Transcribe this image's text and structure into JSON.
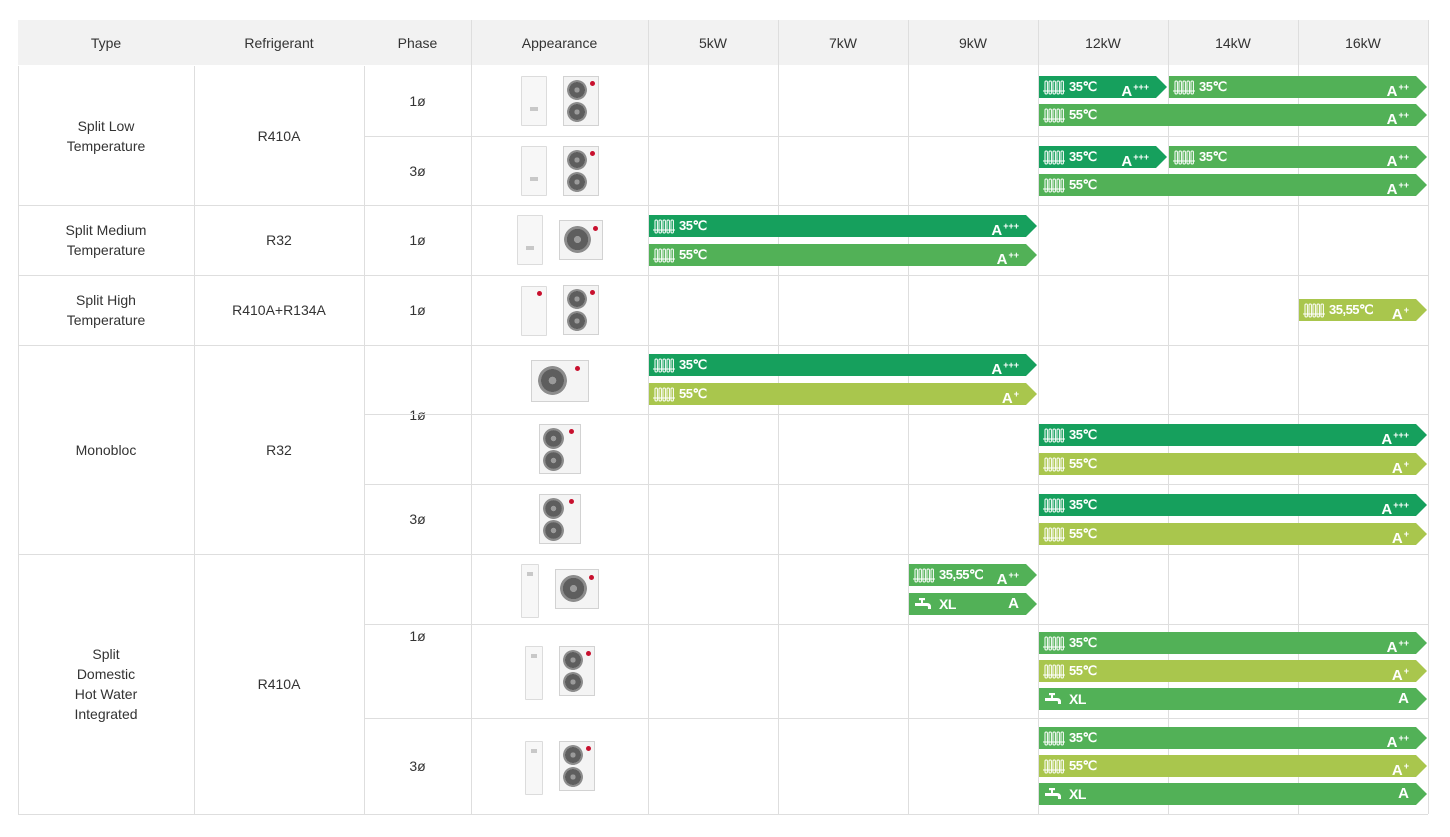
{
  "header": {
    "type": "Type",
    "refrigerant": "Refrigerant",
    "phase": "Phase",
    "appearance": "Appearance",
    "capacities": [
      "5kW",
      "7kW",
      "9kW",
      "12kW",
      "14kW",
      "16kW"
    ]
  },
  "colors": {
    "dark_green": "#16a05d",
    "mid_green": "#52b157",
    "lime": "#a9c64d",
    "header_bg": "#f2f2f2",
    "grid": "#dedede"
  },
  "groups": [
    {
      "type": "Split Low\nTemperature",
      "refrigerant": "R410A"
    },
    {
      "type": "Split Medium\nTemperature",
      "refrigerant": "R32"
    },
    {
      "type": "Split High\nTemperature",
      "refrigerant": "R410A+R134A"
    },
    {
      "type": "Monobloc",
      "refrigerant": "R32"
    },
    {
      "type": "Split\nDomestic\nHot Water\nIntegrated",
      "refrigerant": "R410A"
    }
  ],
  "phases": [
    "1ø",
    "3ø",
    "1ø",
    "1ø",
    "1ø",
    "3ø",
    "1ø",
    "3ø"
  ],
  "rows": [
    {
      "appearance": [
        "indoor-unit",
        "outdoor-unit-tall"
      ],
      "bars": [
        {
          "from": "12kW",
          "to": "12kW",
          "icon": "radiator-icon",
          "temp": "35℃",
          "rating": "A",
          "plus": "+++",
          "color": "dark_green"
        },
        {
          "from": "14kW",
          "to": "16kW",
          "icon": "radiator-icon",
          "temp": "35℃",
          "rating": "A",
          "plus": "++",
          "color": "mid_green"
        },
        {
          "from": "12kW",
          "to": "16kW",
          "icon": "radiator-icon",
          "temp": "55℃",
          "rating": "A",
          "plus": "++",
          "color": "mid_green"
        }
      ]
    },
    {
      "appearance": [
        "indoor-unit",
        "outdoor-unit-tall"
      ],
      "bars": [
        {
          "from": "12kW",
          "to": "12kW",
          "icon": "radiator-icon",
          "temp": "35℃",
          "rating": "A",
          "plus": "+++",
          "color": "dark_green"
        },
        {
          "from": "14kW",
          "to": "16kW",
          "icon": "radiator-icon",
          "temp": "35℃",
          "rating": "A",
          "plus": "++",
          "color": "mid_green"
        },
        {
          "from": "12kW",
          "to": "16kW",
          "icon": "radiator-icon",
          "temp": "55℃",
          "rating": "A",
          "plus": "++",
          "color": "mid_green"
        }
      ]
    },
    {
      "appearance": [
        "indoor-unit",
        "outdoor-unit-wide"
      ],
      "bars": [
        {
          "from": "5kW",
          "to": "9kW",
          "icon": "radiator-icon",
          "temp": "35℃",
          "rating": "A",
          "plus": "+++",
          "color": "dark_green"
        },
        {
          "from": "5kW",
          "to": "9kW",
          "icon": "radiator-icon",
          "temp": "55℃",
          "rating": "A",
          "plus": "++",
          "color": "mid_green"
        }
      ]
    },
    {
      "appearance": [
        "indoor-cabinet",
        "outdoor-unit-tall"
      ],
      "bars": [
        {
          "from": "16kW",
          "to": "16kW",
          "icon": "radiator-icon",
          "temp": "35,55℃",
          "rating": "A",
          "plus": "+",
          "color": "lime"
        }
      ]
    },
    {
      "appearance": [
        "monobloc-wide"
      ],
      "bars": [
        {
          "from": "5kW",
          "to": "9kW",
          "icon": "radiator-icon",
          "temp": "35℃",
          "rating": "A",
          "plus": "+++",
          "color": "dark_green"
        },
        {
          "from": "5kW",
          "to": "9kW",
          "icon": "radiator-icon",
          "temp": "55℃",
          "rating": "A",
          "plus": "+",
          "color": "lime"
        }
      ]
    },
    {
      "appearance": [
        "monobloc-tall"
      ],
      "bars": [
        {
          "from": "12kW",
          "to": "16kW",
          "icon": "radiator-icon",
          "temp": "35℃",
          "rating": "A",
          "plus": "+++",
          "color": "dark_green"
        },
        {
          "from": "12kW",
          "to": "16kW",
          "icon": "radiator-icon",
          "temp": "55℃",
          "rating": "A",
          "plus": "+",
          "color": "lime"
        }
      ]
    },
    {
      "appearance": [
        "monobloc-tall"
      ],
      "bars": [
        {
          "from": "12kW",
          "to": "16kW",
          "icon": "radiator-icon",
          "temp": "35℃",
          "rating": "A",
          "plus": "+++",
          "color": "dark_green"
        },
        {
          "from": "12kW",
          "to": "16kW",
          "icon": "radiator-icon",
          "temp": "55℃",
          "rating": "A",
          "plus": "+",
          "color": "lime"
        }
      ]
    },
    {
      "appearance": [
        "tank-unit",
        "outdoor-unit-wide"
      ],
      "bars": [
        {
          "from": "9kW",
          "to": "9kW",
          "icon": "radiator-icon",
          "temp": "35,55℃",
          "rating": "A",
          "plus": "++",
          "color": "mid_green"
        },
        {
          "from": "9kW",
          "to": "9kW",
          "icon": "tap-icon",
          "temp": "XL",
          "rating": "A",
          "plus": "",
          "color": "mid_green"
        }
      ]
    },
    {
      "appearance": [
        "tank-unit",
        "outdoor-unit-tall"
      ],
      "bars": [
        {
          "from": "12kW",
          "to": "16kW",
          "icon": "radiator-icon",
          "temp": "35℃",
          "rating": "A",
          "plus": "++",
          "color": "mid_green"
        },
        {
          "from": "12kW",
          "to": "16kW",
          "icon": "radiator-icon",
          "temp": "55℃",
          "rating": "A",
          "plus": "+",
          "color": "lime"
        },
        {
          "from": "12kW",
          "to": "16kW",
          "icon": "tap-icon",
          "temp": "XL",
          "rating": "A",
          "plus": "",
          "color": "mid_green"
        }
      ]
    },
    {
      "appearance": [
        "tank-unit",
        "outdoor-unit-tall"
      ],
      "bars": [
        {
          "from": "12kW",
          "to": "16kW",
          "icon": "radiator-icon",
          "temp": "35℃",
          "rating": "A",
          "plus": "++",
          "color": "mid_green"
        },
        {
          "from": "12kW",
          "to": "16kW",
          "icon": "radiator-icon",
          "temp": "55℃",
          "rating": "A",
          "plus": "+",
          "color": "lime"
        },
        {
          "from": "12kW",
          "to": "16kW",
          "icon": "tap-icon",
          "temp": "XL",
          "rating": "A",
          "plus": "",
          "color": "mid_green"
        }
      ]
    }
  ]
}
